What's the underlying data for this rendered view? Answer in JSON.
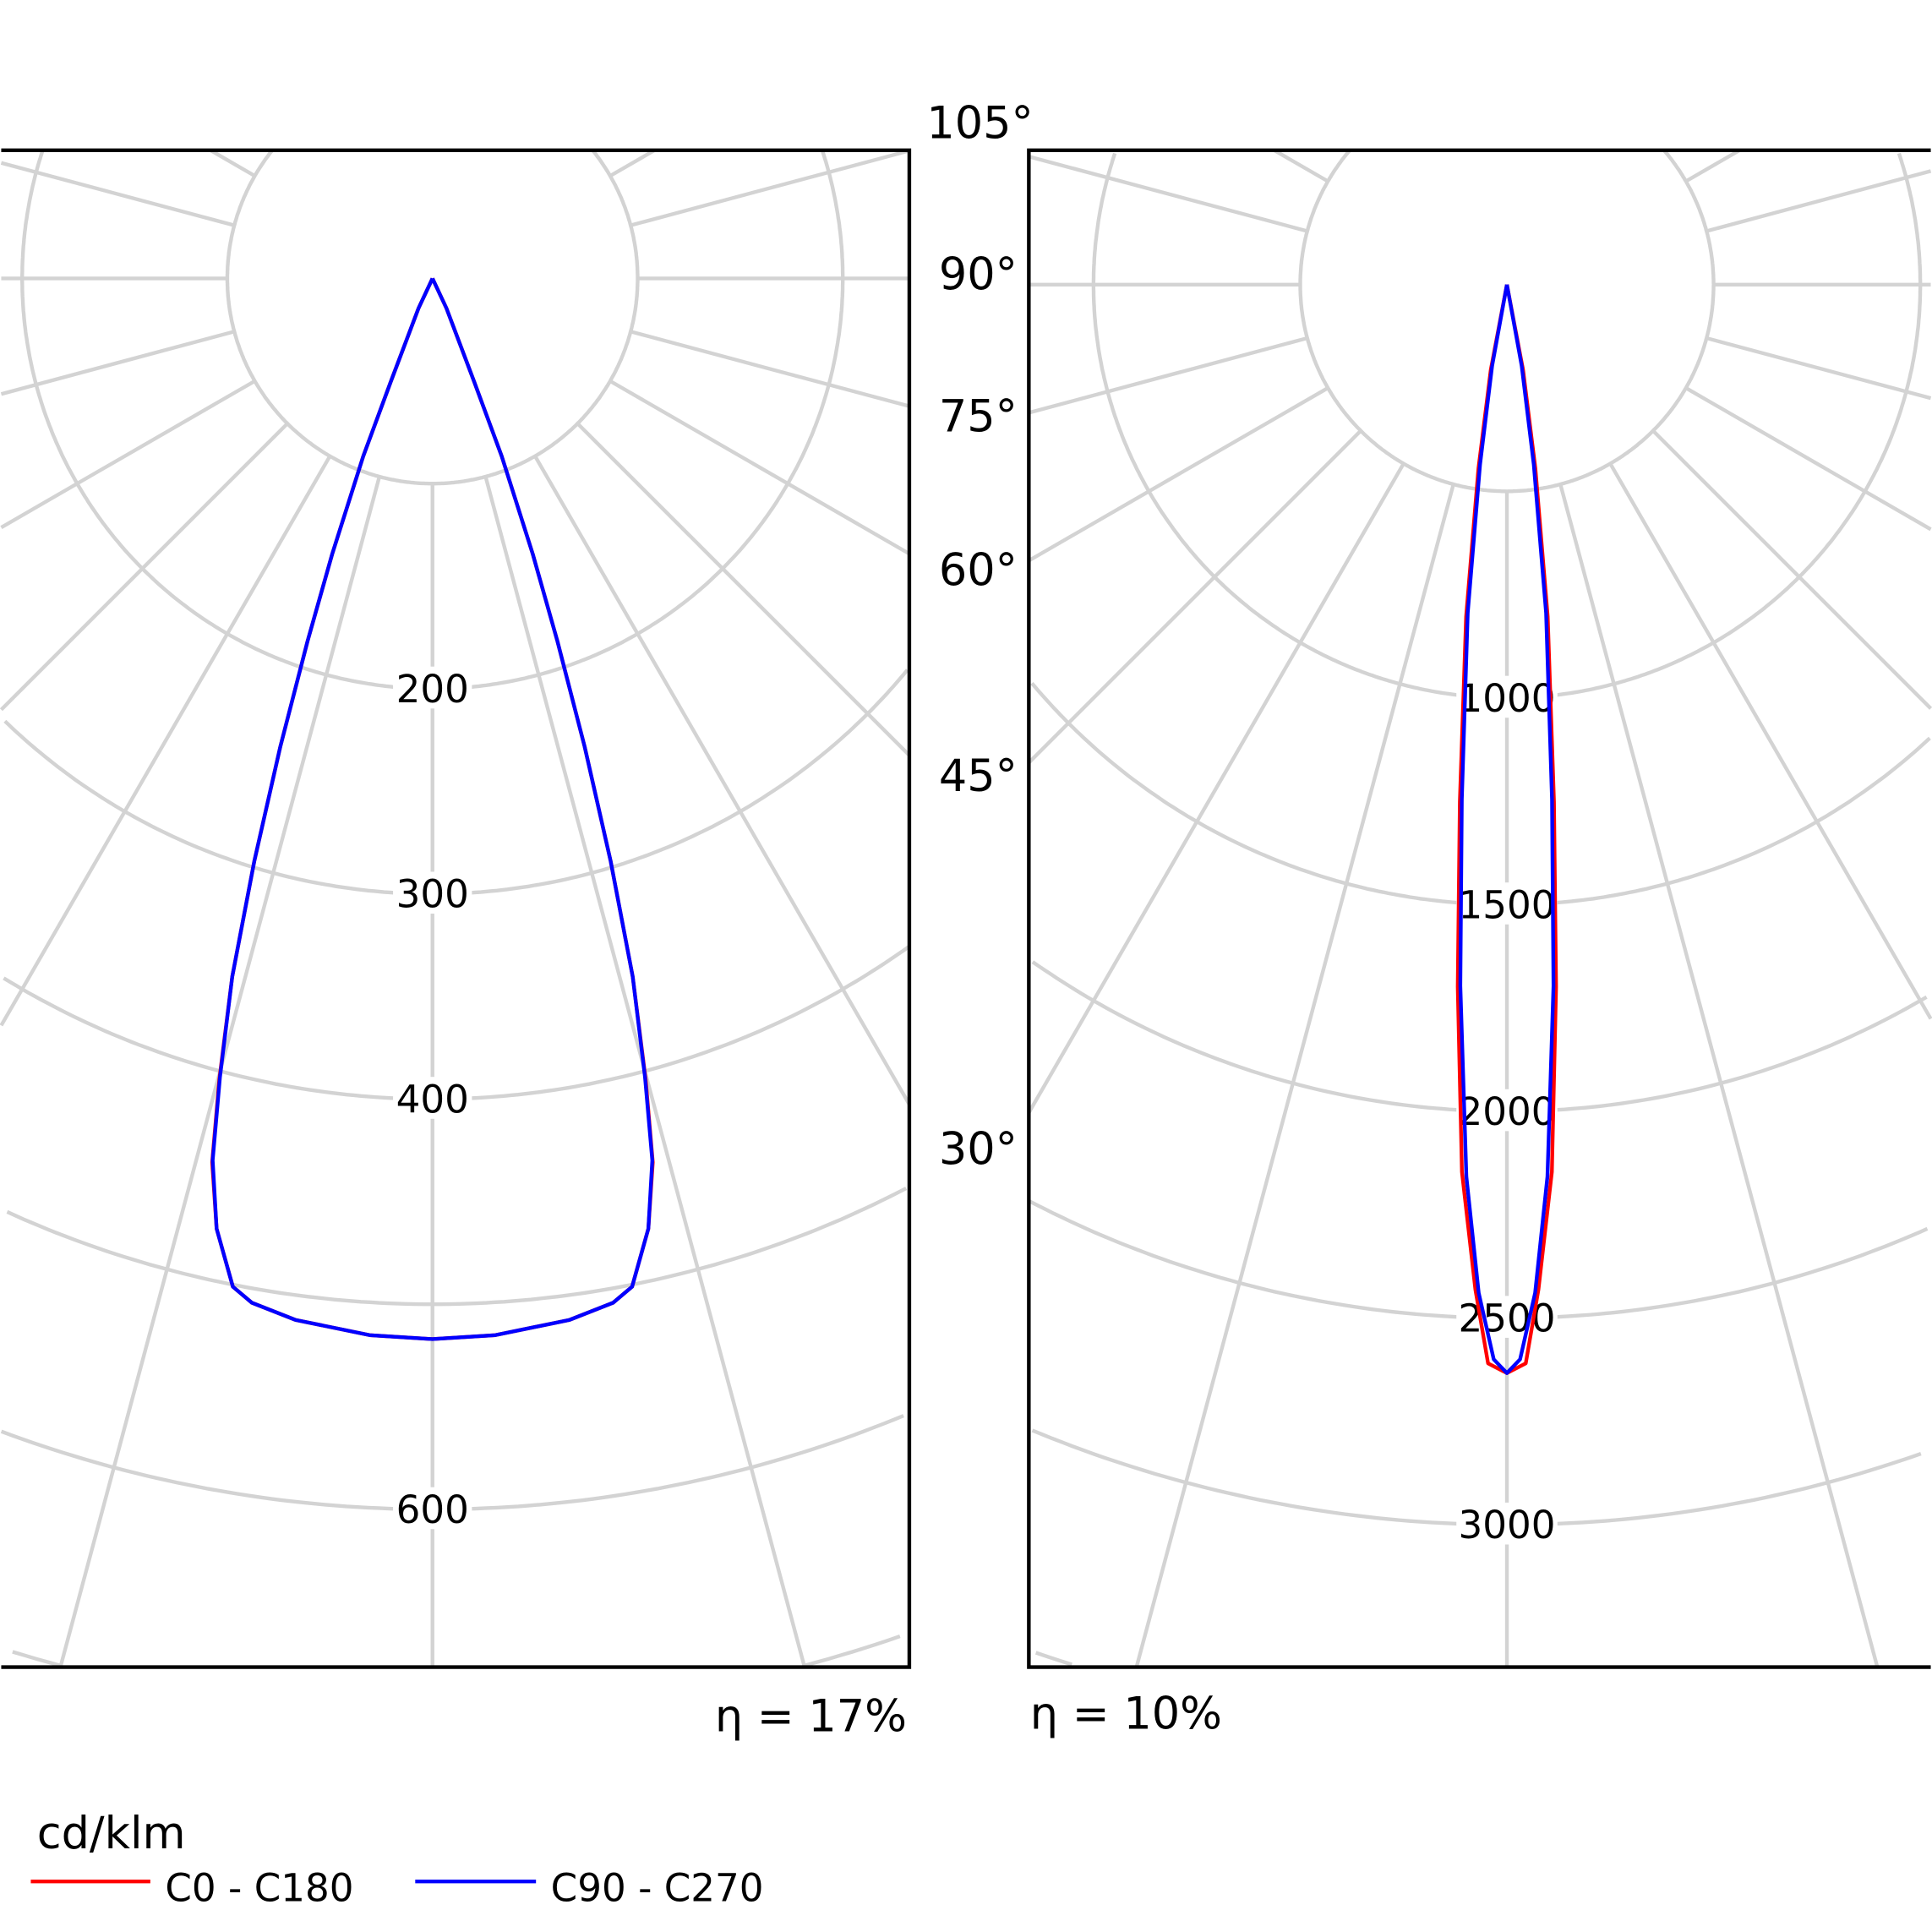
{
  "chart_data": [
    {
      "type": "polar",
      "unit": "cd/klm",
      "efficiency_label": "η = 17%",
      "ring_values": [
        100,
        200,
        300,
        400,
        500,
        600,
        700,
        800
      ],
      "ring_labels": [
        "200",
        "300",
        "400",
        "600"
      ],
      "angle_step_deg": 15,
      "series": [
        {
          "name": "C0 - C180",
          "color": "#ff0000",
          "points": [
            [
              0,
              517
            ],
            [
              3.4,
              516
            ],
            [
              7.5,
              512
            ],
            [
              10,
              507
            ],
            [
              11.2,
              501
            ],
            [
              12.8,
              475
            ],
            [
              14,
              444
            ],
            [
              14.9,
              404
            ],
            [
              16,
              354
            ],
            [
              17,
              297
            ],
            [
              18,
              240
            ],
            [
              19,
              187
            ],
            [
              20,
              143
            ],
            [
              21.3,
              93
            ],
            [
              22,
              54
            ],
            [
              25,
              16
            ],
            [
              35,
              0
            ]
          ]
        },
        {
          "name": "C90 - C270",
          "color": "#0000ff",
          "points": [
            [
              0,
              517
            ],
            [
              3.4,
              516
            ],
            [
              7.5,
              512
            ],
            [
              10,
              507
            ],
            [
              11.2,
              501
            ],
            [
              12.8,
              475
            ],
            [
              14,
              443
            ],
            [
              14.9,
              403
            ],
            [
              16,
              354
            ],
            [
              17,
              297
            ],
            [
              18,
              240
            ],
            [
              19,
              187
            ],
            [
              20,
              143
            ],
            [
              21.3,
              93
            ],
            [
              22,
              54
            ],
            [
              25,
              16
            ],
            [
              35,
              0
            ]
          ]
        }
      ]
    },
    {
      "type": "polar",
      "unit": "cd/klm",
      "efficiency_label": "η = 10%",
      "ring_values": [
        500,
        1000,
        1500,
        2000,
        2500,
        3000,
        3500,
        4000
      ],
      "ring_labels": [
        "1000",
        "1500",
        "2000",
        "2500",
        "3000"
      ],
      "angle_step_deg": 15,
      "series": [
        {
          "name": "C0 - C180",
          "color": "#ff0000",
          "points": [
            [
              0,
              2633
            ],
            [
              1,
              2610
            ],
            [
              1.8,
              2432
            ],
            [
              2.9,
              2149
            ],
            [
              4,
              1703
            ],
            [
              5.2,
              1256
            ],
            [
              7,
              809
            ],
            [
              8.8,
              450
            ],
            [
              10.7,
              210
            ],
            [
              15,
              0
            ]
          ]
        },
        {
          "name": "C90 - C270",
          "color": "#0000ff",
          "points": [
            [
              0,
              2633
            ],
            [
              0.7,
              2600
            ],
            [
              1.6,
              2440
            ],
            [
              2.6,
              2160
            ],
            [
              3.8,
              1700
            ],
            [
              5,
              1250
            ],
            [
              6.8,
              800
            ],
            [
              8.5,
              440
            ],
            [
              10.3,
              200
            ],
            [
              15,
              0
            ]
          ]
        }
      ]
    }
  ],
  "angle_labels": [
    "105°",
    "90°",
    "75°",
    "60°",
    "45°",
    "30°"
  ],
  "legend": {
    "unit": "cd/klm",
    "items": [
      {
        "label": "C0 - C180",
        "color": "#ff0000"
      },
      {
        "label": "C90 - C270",
        "color": "#0000ff"
      }
    ]
  },
  "colors": {
    "grid": "#d3d3d3",
    "frame": "#000000"
  }
}
